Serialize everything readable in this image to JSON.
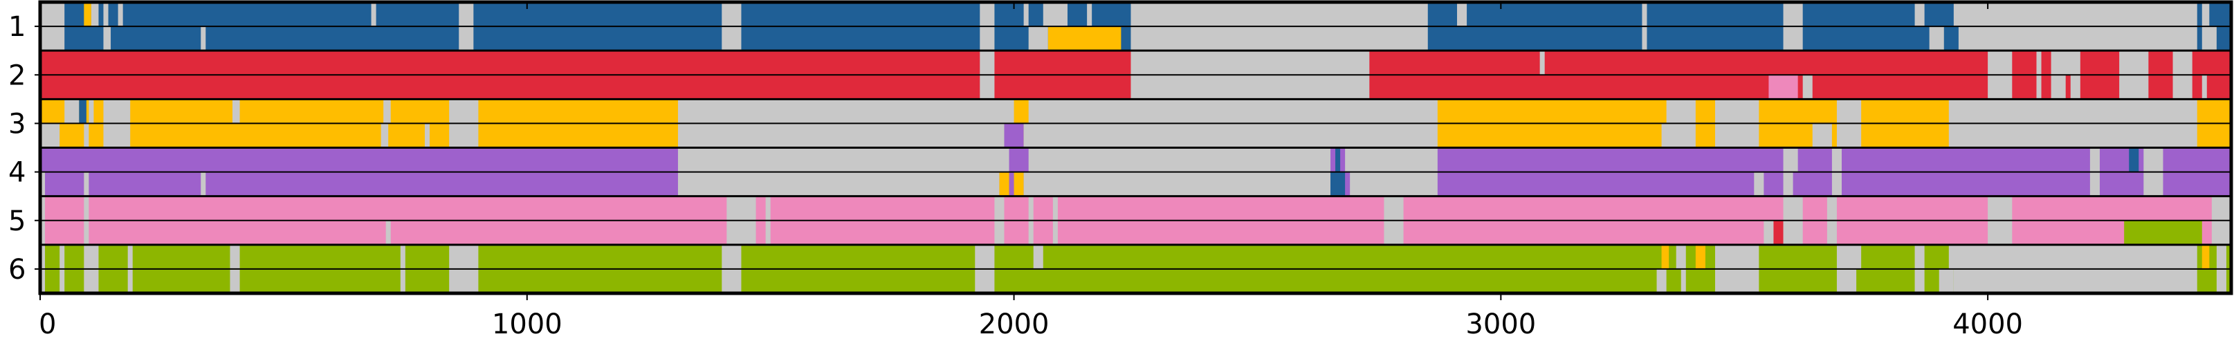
{
  "chart_data": {
    "type": "heatmap",
    "title": "",
    "xlabel": "",
    "ylabel": "",
    "xlim": [
      0,
      4500
    ],
    "x_ticks": [
      0,
      1000,
      2000,
      3000,
      4000
    ],
    "x_tick_labels": [
      "0",
      "1000",
      "2000",
      "3000",
      "4000"
    ],
    "y_tick_labels": [
      "1",
      "2",
      "3",
      "4",
      "5",
      "6"
    ],
    "grid": false,
    "legend": "none",
    "colors": {
      "blue": "#1f5f96",
      "red": "#e0293b",
      "yellow": "#ffbd00",
      "purple": "#9e61cc",
      "pink": "#ee88bb",
      "green": "#8db600",
      "gray": "#c8c8c8",
      "frame": "#000000"
    },
    "rows": [
      {
        "label": "1",
        "base": "blue",
        "tracks": [
          [
            [
              0,
              50,
              "gray"
            ],
            [
              90,
              105,
              "yellow"
            ],
            [
              105,
              120,
              "gray"
            ],
            [
              130,
              140,
              "gray"
            ],
            [
              160,
              170,
              "gray"
            ],
            [
              680,
              690,
              "gray"
            ],
            [
              860,
              890,
              "gray"
            ],
            [
              1400,
              1440,
              "gray"
            ],
            [
              1930,
              1960,
              "gray"
            ],
            [
              2020,
              2030,
              "gray"
            ],
            [
              2060,
              2110,
              "gray"
            ],
            [
              2150,
              2160,
              "gray"
            ],
            [
              2240,
              2850,
              "gray"
            ],
            [
              2910,
              2930,
              "gray"
            ],
            [
              3290,
              3300,
              "gray"
            ],
            [
              3580,
              3620,
              "gray"
            ],
            [
              3850,
              3870,
              "gray"
            ],
            [
              3930,
              4430,
              "gray"
            ],
            [
              4440,
              4455,
              "gray"
            ]
          ],
          [
            [
              0,
              50,
              "gray"
            ],
            [
              130,
              145,
              "gray"
            ],
            [
              330,
              340,
              "gray"
            ],
            [
              860,
              890,
              "gray"
            ],
            [
              1400,
              1440,
              "gray"
            ],
            [
              1930,
              1960,
              "gray"
            ],
            [
              2030,
              2070,
              "gray"
            ],
            [
              2070,
              2220,
              "yellow"
            ],
            [
              2240,
              2850,
              "gray"
            ],
            [
              3290,
              3300,
              "gray"
            ],
            [
              3580,
              3620,
              "gray"
            ],
            [
              3880,
              3910,
              "gray"
            ],
            [
              3940,
              4430,
              "gray"
            ],
            [
              4440,
              4470,
              "gray"
            ]
          ]
        ]
      },
      {
        "label": "2",
        "base": "red",
        "tracks": [
          [
            [
              1930,
              1960,
              "gray"
            ],
            [
              2240,
              2730,
              "gray"
            ],
            [
              3080,
              3090,
              "gray"
            ],
            [
              4000,
              4050,
              "gray"
            ],
            [
              4100,
              4110,
              "gray"
            ],
            [
              4130,
              4190,
              "gray"
            ],
            [
              4270,
              4330,
              "gray"
            ],
            [
              4380,
              4420,
              "gray"
            ]
          ],
          [
            [
              1930,
              1960,
              "gray"
            ],
            [
              2240,
              2730,
              "gray"
            ],
            [
              3550,
              3610,
              "pink"
            ],
            [
              3620,
              3640,
              "gray"
            ],
            [
              4000,
              4050,
              "gray"
            ],
            [
              4100,
              4110,
              "gray"
            ],
            [
              4130,
              4160,
              "gray"
            ],
            [
              4170,
              4190,
              "gray"
            ],
            [
              4270,
              4330,
              "gray"
            ],
            [
              4380,
              4420,
              "gray"
            ],
            [
              4440,
              4450,
              "gray"
            ]
          ]
        ]
      },
      {
        "label": "3",
        "base": "yellow",
        "tracks": [
          [
            [
              50,
              80,
              "gray"
            ],
            [
              80,
              95,
              "blue"
            ],
            [
              100,
              110,
              "gray"
            ],
            [
              130,
              185,
              "gray"
            ],
            [
              395,
              410,
              "gray"
            ],
            [
              705,
              720,
              "gray"
            ],
            [
              840,
              900,
              "gray"
            ],
            [
              1310,
              2000,
              "gray"
            ],
            [
              2030,
              2870,
              "gray"
            ],
            [
              3340,
              3400,
              "gray"
            ],
            [
              3440,
              3530,
              "gray"
            ],
            [
              3690,
              3740,
              "gray"
            ],
            [
              3920,
              4430,
              "gray"
            ]
          ],
          [
            [
              0,
              40,
              "gray"
            ],
            [
              90,
              100,
              "gray"
            ],
            [
              130,
              185,
              "gray"
            ],
            [
              700,
              715,
              "gray"
            ],
            [
              790,
              800,
              "gray"
            ],
            [
              840,
              900,
              "gray"
            ],
            [
              1310,
              1980,
              "gray"
            ],
            [
              1980,
              2020,
              "purple"
            ],
            [
              2020,
              2870,
              "gray"
            ],
            [
              3330,
              3400,
              "gray"
            ],
            [
              3440,
              3530,
              "gray"
            ],
            [
              3640,
              3680,
              "gray"
            ],
            [
              3690,
              3740,
              "gray"
            ],
            [
              3920,
              4430,
              "gray"
            ]
          ]
        ]
      },
      {
        "label": "4",
        "base": "purple",
        "tracks": [
          [
            [
              1310,
              1990,
              "gray"
            ],
            [
              2030,
              2650,
              "gray"
            ],
            [
              2660,
              2670,
              "blue"
            ],
            [
              2680,
              2870,
              "gray"
            ],
            [
              3580,
              3610,
              "gray"
            ],
            [
              3680,
              3700,
              "gray"
            ],
            [
              4210,
              4230,
              "gray"
            ],
            [
              4290,
              4310,
              "blue"
            ],
            [
              4320,
              4360,
              "gray"
            ]
          ],
          [
            [
              0,
              10,
              "gray"
            ],
            [
              90,
              100,
              "gray"
            ],
            [
              330,
              340,
              "gray"
            ],
            [
              1310,
              1970,
              "gray"
            ],
            [
              1970,
              1990,
              "yellow"
            ],
            [
              2000,
              2020,
              "yellow"
            ],
            [
              2020,
              2650,
              "gray"
            ],
            [
              2650,
              2680,
              "blue"
            ],
            [
              2690,
              2870,
              "gray"
            ],
            [
              3520,
              3540,
              "gray"
            ],
            [
              3580,
              3600,
              "gray"
            ],
            [
              3680,
              3700,
              "gray"
            ],
            [
              4210,
              4230,
              "gray"
            ],
            [
              4320,
              4360,
              "gray"
            ]
          ]
        ]
      },
      {
        "label": "5",
        "base": "pink",
        "tracks": [
          [
            [
              0,
              10,
              "gray"
            ],
            [
              90,
              100,
              "gray"
            ],
            [
              1410,
              1470,
              "gray"
            ],
            [
              1490,
              1500,
              "gray"
            ],
            [
              1960,
              1980,
              "gray"
            ],
            [
              2030,
              2040,
              "gray"
            ],
            [
              2080,
              2090,
              "gray"
            ],
            [
              2760,
              2800,
              "gray"
            ],
            [
              3580,
              3620,
              "gray"
            ],
            [
              3670,
              3690,
              "gray"
            ],
            [
              4000,
              4050,
              "gray"
            ],
            [
              4460,
              4500,
              "gray"
            ]
          ],
          [
            [
              0,
              10,
              "gray"
            ],
            [
              90,
              100,
              "gray"
            ],
            [
              710,
              720,
              "gray"
            ],
            [
              1410,
              1470,
              "gray"
            ],
            [
              1490,
              1500,
              "gray"
            ],
            [
              1960,
              1980,
              "gray"
            ],
            [
              2030,
              2040,
              "gray"
            ],
            [
              2080,
              2090,
              "gray"
            ],
            [
              2760,
              2800,
              "gray"
            ],
            [
              3540,
              3560,
              "gray"
            ],
            [
              3560,
              3580,
              "red"
            ],
            [
              3580,
              3620,
              "gray"
            ],
            [
              3670,
              3690,
              "gray"
            ],
            [
              4000,
              4050,
              "gray"
            ],
            [
              4280,
              4440,
              "green"
            ],
            [
              4460,
              4500,
              "gray"
            ]
          ]
        ]
      },
      {
        "label": "6",
        "base": "green",
        "tracks": [
          [
            [
              0,
              10,
              "gray"
            ],
            [
              40,
              50,
              "gray"
            ],
            [
              90,
              120,
              "gray"
            ],
            [
              180,
              190,
              "gray"
            ],
            [
              390,
              410,
              "gray"
            ],
            [
              740,
              750,
              "gray"
            ],
            [
              840,
              900,
              "gray"
            ],
            [
              1400,
              1440,
              "gray"
            ],
            [
              1920,
              1960,
              "gray"
            ],
            [
              2040,
              2060,
              "gray"
            ],
            [
              3330,
              3345,
              "yellow"
            ],
            [
              3360,
              3380,
              "gray"
            ],
            [
              3400,
              3420,
              "yellow"
            ],
            [
              3440,
              3530,
              "gray"
            ],
            [
              3690,
              3740,
              "gray"
            ],
            [
              3850,
              3870,
              "gray"
            ],
            [
              3920,
              4430,
              "gray"
            ],
            [
              4440,
              4455,
              "yellow"
            ],
            [
              4470,
              4490,
              "gray"
            ]
          ],
          [
            [
              0,
              10,
              "gray"
            ],
            [
              40,
              50,
              "gray"
            ],
            [
              90,
              120,
              "gray"
            ],
            [
              180,
              190,
              "gray"
            ],
            [
              390,
              410,
              "gray"
            ],
            [
              740,
              750,
              "gray"
            ],
            [
              840,
              900,
              "gray"
            ],
            [
              1400,
              1440,
              "gray"
            ],
            [
              1920,
              1960,
              "gray"
            ],
            [
              3320,
              3340,
              "gray"
            ],
            [
              3370,
              3380,
              "gray"
            ],
            [
              3440,
              3530,
              "gray"
            ],
            [
              3690,
              3730,
              "gray"
            ],
            [
              3850,
              3870,
              "gray"
            ],
            [
              3900,
              3930,
              "gray"
            ],
            [
              3930,
              4430,
              "gray"
            ],
            [
              4470,
              4490,
              "gray"
            ]
          ]
        ]
      }
    ]
  }
}
